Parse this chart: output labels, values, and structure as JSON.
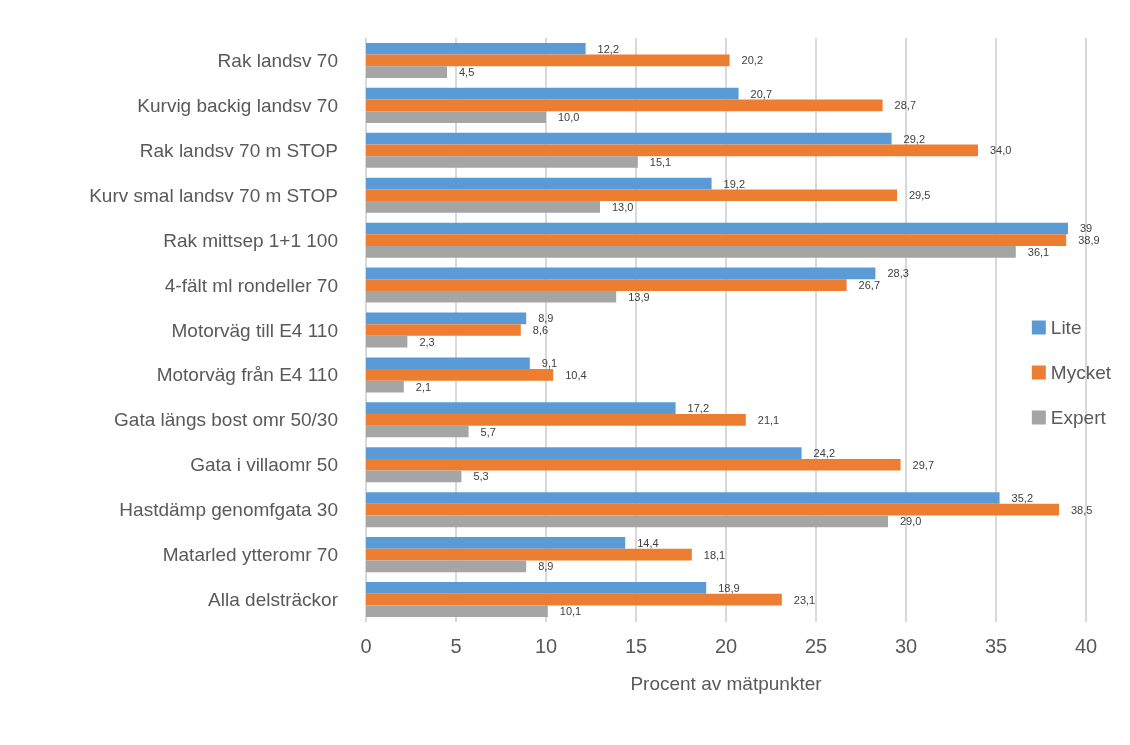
{
  "chart_data": {
    "type": "bar",
    "orientation": "horizontal",
    "categories": [
      "Rak landsv 70",
      "Kurvig backig landsv 70",
      "Rak landsv 70 m STOP",
      "Kurv smal landsv 70 m STOP",
      "Rak mittsep 1+1 100",
      "4-fält ml rondeller 70",
      "Motorväg till E4 110",
      "Motorväg från E4 110",
      "Gata längs bost omr 50/30",
      "Gata i villaomr 50",
      "Hastdämp genomfgata 30",
      "Matarled ytteromr 70",
      "Alla delsträckor"
    ],
    "series": [
      {
        "name": "Lite",
        "color": "#5b9bd5",
        "values": [
          12.2,
          20.7,
          29.2,
          19.2,
          39,
          28.3,
          8.9,
          9.1,
          17.2,
          24.2,
          35.2,
          14.4,
          18.9
        ],
        "value_labels": [
          "12,2",
          "20,7",
          "29,2",
          "19,2",
          "39",
          "28,3",
          "8,9",
          "9,1",
          "17,2",
          "24,2",
          "35,2",
          "14,4",
          "18,9"
        ]
      },
      {
        "name": "Mycket",
        "color": "#ed7d31",
        "values": [
          20.2,
          28.7,
          34.0,
          29.5,
          38.9,
          26.7,
          8.6,
          10.4,
          21.1,
          29.7,
          38.5,
          18.1,
          23.1
        ],
        "value_labels": [
          "20,2",
          "28,7",
          "34,0",
          "29,5",
          "38,9",
          "26,7",
          "8,6",
          "10,4",
          "21,1",
          "29,7",
          "38,5",
          "18,1",
          "23,1"
        ]
      },
      {
        "name": "Expert",
        "color": "#a5a5a5",
        "values": [
          4.5,
          10.0,
          15.1,
          13.0,
          36.1,
          13.9,
          2.3,
          2.1,
          5.7,
          5.3,
          29.0,
          8.9,
          10.1
        ],
        "value_labels": [
          "4,5",
          "10,0",
          "15,1",
          "13,0",
          "36,1",
          "13,9",
          "2,3",
          "2,1",
          "5,7",
          "5,3",
          "29,0",
          "8,9",
          "10,1"
        ]
      }
    ],
    "xlabel": "Procent av mätpunkter",
    "xlim": [
      0,
      40
    ],
    "xticks": [
      0,
      5,
      10,
      15,
      20,
      25,
      30,
      35,
      40
    ],
    "grid": "x",
    "legend": "right"
  }
}
